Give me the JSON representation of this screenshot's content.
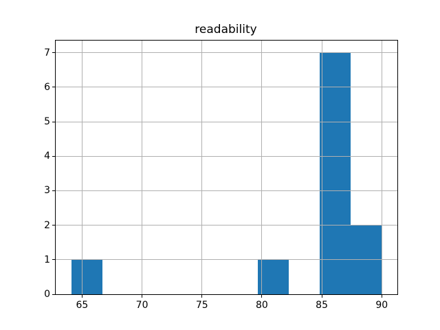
{
  "chart_data": {
    "type": "bar",
    "subtype": "histogram",
    "title": "readability",
    "xlabel": "",
    "ylabel": "",
    "bin_edges": [
      64.1,
      66.69,
      69.28,
      71.87,
      74.46,
      77.05,
      79.64,
      82.23,
      84.82,
      87.41,
      90.0
    ],
    "values": [
      1,
      0,
      0,
      0,
      0,
      0,
      1,
      0,
      7,
      2
    ],
    "xticks": [
      65,
      70,
      75,
      80,
      85,
      90
    ],
    "yticks": [
      0,
      1,
      2,
      3,
      4,
      5,
      6,
      7
    ],
    "xlim": [
      62.8,
      91.3
    ],
    "ylim": [
      0,
      7.35
    ],
    "grid": true,
    "grid_on_top_of_bars": true,
    "legend": "none",
    "bar_color": "#1f77b4",
    "grid_color": "#b0b0b0",
    "axis_color": "#000000",
    "background_color": "#ffffff"
  }
}
